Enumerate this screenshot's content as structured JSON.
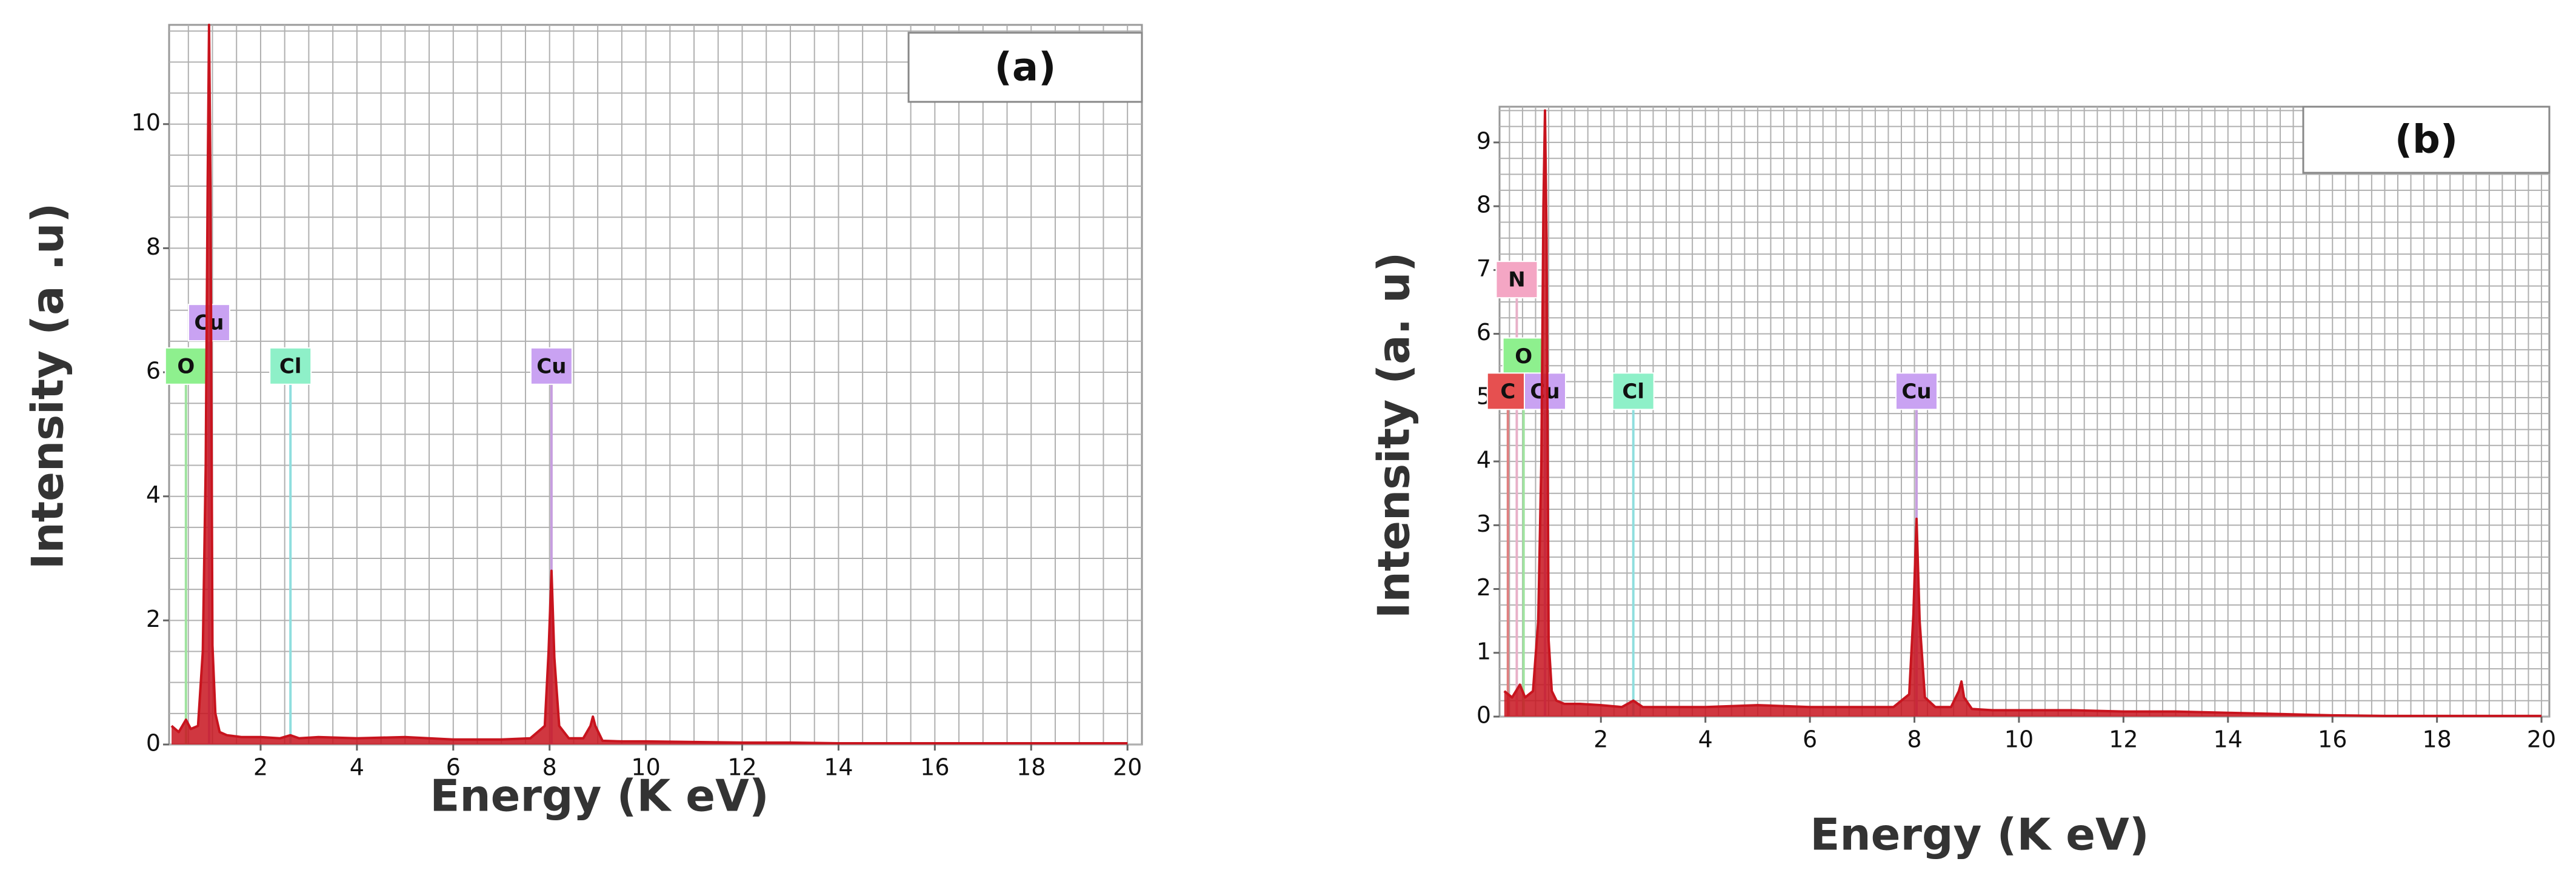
{
  "chart_data": [
    {
      "type": "area",
      "title": "(a)",
      "x_label": "Energy (K eV)",
      "y_label": "Intensity (a .u)",
      "color": "#c8141e",
      "x": [
        0.15,
        0.3,
        0.45,
        0.55,
        0.7,
        0.8,
        0.86,
        0.9,
        0.93,
        0.96,
        1.0,
        1.06,
        1.15,
        1.3,
        1.6,
        2.0,
        2.4,
        2.62,
        2.8,
        3.2,
        4,
        5,
        6,
        7,
        7.6,
        7.9,
        7.98,
        8.04,
        8.1,
        8.2,
        8.4,
        8.7,
        8.85,
        8.9,
        8.95,
        9.1,
        9.5,
        10,
        11,
        12,
        13,
        14,
        15,
        16,
        17,
        18,
        19,
        20
      ],
      "values": [
        0.3,
        0.2,
        0.4,
        0.25,
        0.3,
        1.5,
        4.5,
        9,
        11.6,
        9,
        1.6,
        0.5,
        0.2,
        0.15,
        0.12,
        0.12,
        0.1,
        0.15,
        0.1,
        0.12,
        0.1,
        0.12,
        0.08,
        0.08,
        0.1,
        0.3,
        1.5,
        2.8,
        1.4,
        0.3,
        0.1,
        0.1,
        0.3,
        0.45,
        0.3,
        0.06,
        0.05,
        0.05,
        0.04,
        0.03,
        0.03,
        0.02,
        0.02,
        0.02,
        0.02,
        0.02,
        0.02,
        0.02
      ],
      "xlim": [
        0.1,
        20.3
      ],
      "ylim": [
        0,
        11.6
      ],
      "xticks": [
        2,
        4,
        6,
        8,
        10,
        12,
        14,
        16,
        18,
        20
      ],
      "yticks": [
        0,
        2,
        4,
        6,
        8,
        10
      ],
      "grid": true,
      "minor_grid": 0.5,
      "annotations": [
        {
          "text": "O",
          "x": 0.45,
          "y": 6.1,
          "color": "#8ef08e",
          "line_color": "#9fe39f"
        },
        {
          "text": "Cu",
          "x": 0.93,
          "y": 6.8,
          "color": "#c9a2f2",
          "line_color": "#c79ee0"
        },
        {
          "text": "Cl",
          "x": 2.62,
          "y": 6.1,
          "color": "#8ef0c8",
          "line_color": "#8fdede"
        },
        {
          "text": "Cu",
          "x": 8.04,
          "y": 6.1,
          "color": "#c9a2f2",
          "line_color": "#c79ee0"
        }
      ]
    },
    {
      "type": "area",
      "title": "(b)",
      "x_label": "Energy (K eV)",
      "y_label": "Intensity (a. u)",
      "color": "#c8141e",
      "x": [
        0.15,
        0.3,
        0.45,
        0.55,
        0.7,
        0.8,
        0.86,
        0.9,
        0.93,
        0.96,
        1.0,
        1.06,
        1.15,
        1.3,
        1.6,
        2.0,
        2.4,
        2.62,
        2.8,
        3.2,
        4,
        5,
        6,
        7,
        7.6,
        7.9,
        7.98,
        8.04,
        8.1,
        8.2,
        8.4,
        8.7,
        8.85,
        8.9,
        8.95,
        9.1,
        9.5,
        10,
        11,
        12,
        13,
        14,
        15,
        16,
        17,
        18,
        19,
        20
      ],
      "values": [
        0.4,
        0.3,
        0.5,
        0.3,
        0.4,
        1.5,
        4,
        8,
        9.5,
        7.5,
        1.2,
        0.4,
        0.25,
        0.2,
        0.2,
        0.18,
        0.15,
        0.25,
        0.15,
        0.15,
        0.15,
        0.18,
        0.15,
        0.15,
        0.15,
        0.35,
        1.6,
        3.1,
        1.5,
        0.3,
        0.15,
        0.15,
        0.4,
        0.55,
        0.3,
        0.12,
        0.1,
        0.1,
        0.1,
        0.08,
        0.08,
        0.06,
        0.04,
        0.02,
        0.01,
        0.01,
        0.01,
        0.01
      ],
      "xlim": [
        0.06,
        20.15
      ],
      "ylim": [
        0,
        9.56
      ],
      "xticks": [
        2,
        4,
        6,
        8,
        10,
        12,
        14,
        16,
        18,
        20
      ],
      "yticks": [
        0,
        1,
        2,
        3,
        4,
        5,
        6,
        7,
        8,
        9
      ],
      "grid": true,
      "minor_grid": 0.25,
      "annotations": [
        {
          "text": "N",
          "x": 0.39,
          "y": 6.85,
          "color": "#f4a6c4",
          "line_color": "#e8b0c8"
        },
        {
          "text": "O",
          "x": 0.52,
          "y": 5.65,
          "color": "#8ef08e",
          "line_color": "#9fe39f"
        },
        {
          "text": "C",
          "x": 0.22,
          "y": 5.1,
          "color": "#e65050",
          "line_color": "#e08080"
        },
        {
          "text": "Cu",
          "x": 0.93,
          "y": 5.1,
          "color": "#c9a2f2",
          "line_color": "#c79ee0"
        },
        {
          "text": "Cl",
          "x": 2.62,
          "y": 5.1,
          "color": "#8ef0c8",
          "line_color": "#8fdede"
        },
        {
          "text": "Cu",
          "x": 8.04,
          "y": 5.1,
          "color": "#c9a2f2",
          "line_color": "#c79ee0"
        }
      ]
    }
  ]
}
